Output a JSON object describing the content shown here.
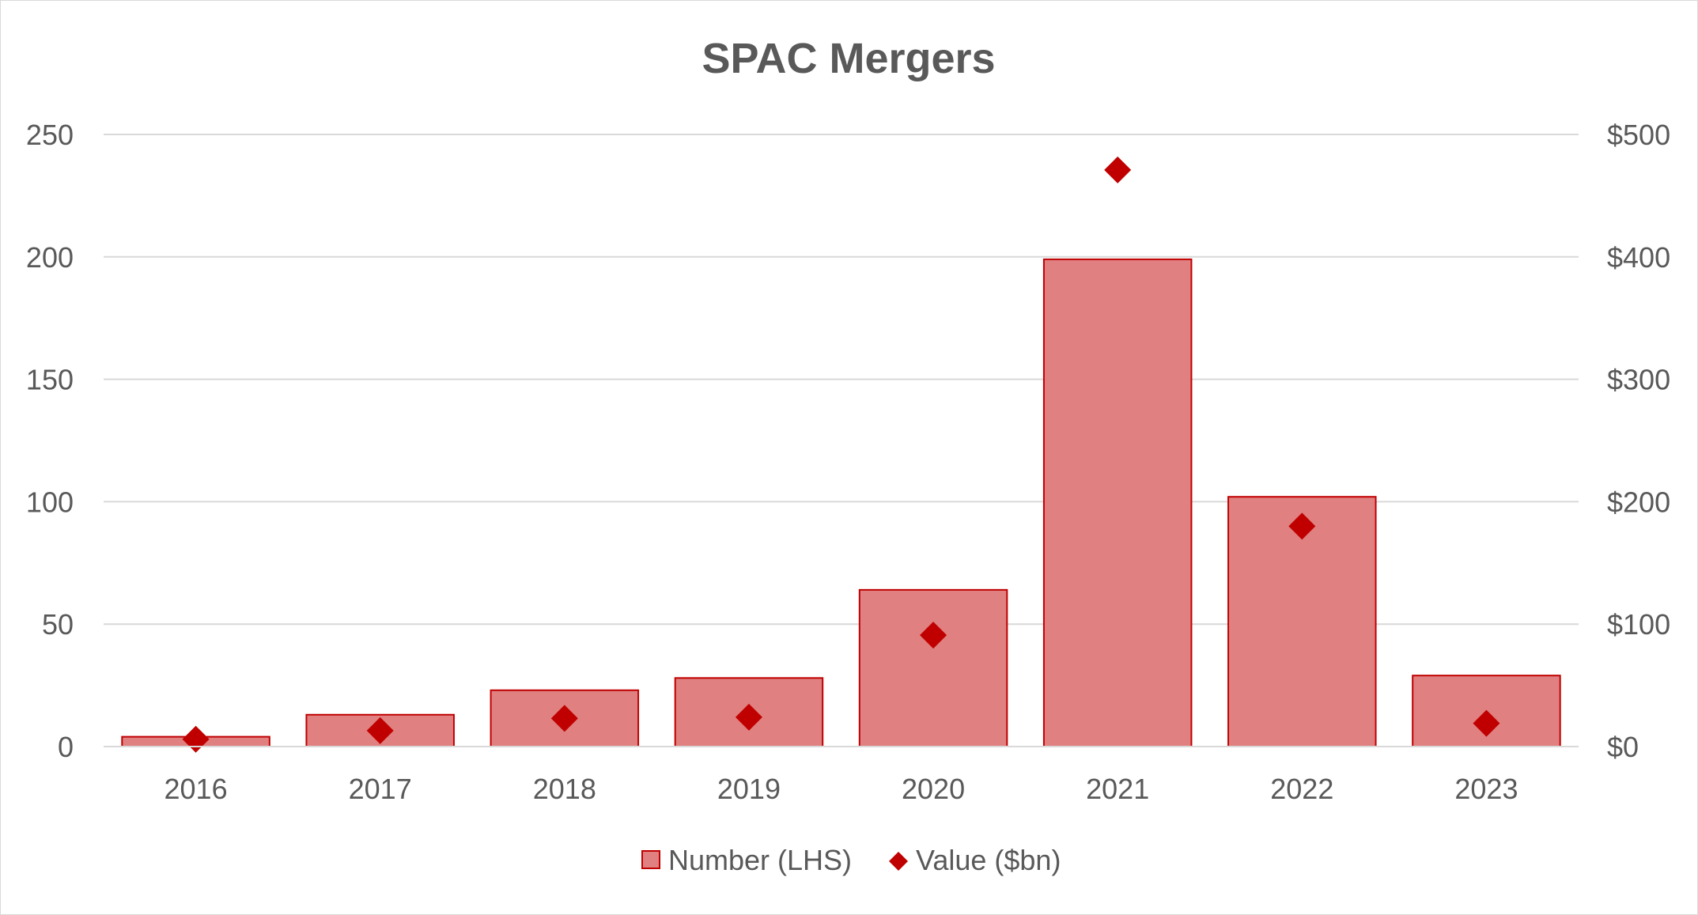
{
  "chart_data": {
    "type": "bar",
    "title": "SPAC Mergers",
    "categories": [
      "2016",
      "2017",
      "2018",
      "2019",
      "2020",
      "2021",
      "2022",
      "2023"
    ],
    "series": [
      {
        "name": "Number (LHS)",
        "type": "bar",
        "axis": "left",
        "values": [
          4,
          13,
          23,
          28,
          64,
          199,
          102,
          29
        ]
      },
      {
        "name": "Value ($bn)",
        "type": "scatter",
        "marker": "diamond",
        "axis": "right",
        "values": [
          6,
          13,
          23,
          24,
          91,
          471,
          180,
          19
        ]
      }
    ],
    "y_left": {
      "lim": [
        0,
        250
      ],
      "ticks": [
        0,
        50,
        100,
        150,
        200,
        250
      ],
      "tick_labels": [
        "0",
        "50",
        "100",
        "150",
        "200",
        "250"
      ]
    },
    "y_right": {
      "lim": [
        0,
        500
      ],
      "ticks": [
        0,
        100,
        200,
        300,
        400,
        500
      ],
      "tick_labels": [
        "$0",
        "$100",
        "$200",
        "$300",
        "$400",
        "$500"
      ]
    },
    "grid": true,
    "legend": "bottom",
    "colors": {
      "bar_fill": "#e08080",
      "bar_stroke": "#c00000",
      "marker": "#c00000",
      "grid": "#d9d9d9",
      "text": "#595959"
    }
  }
}
